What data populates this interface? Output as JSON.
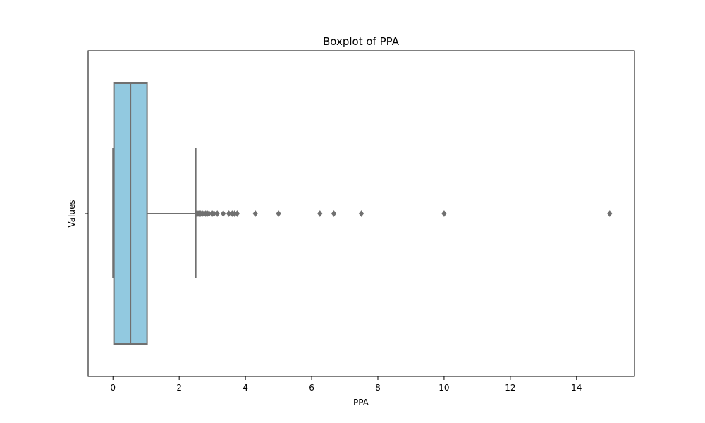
{
  "chart_data": {
    "type": "boxplot",
    "title": "Boxplot of PPA",
    "xlabel": "PPA",
    "ylabel": "Values",
    "xlim": [
      -0.75,
      15.75
    ],
    "xticks": [
      0,
      2,
      4,
      6,
      8,
      10,
      12,
      14
    ],
    "orientation": "horizontal",
    "box": {
      "whisker_low": 0,
      "q1": 0.03,
      "median": 0.53,
      "q3": 1.03,
      "whisker_high": 2.5
    },
    "outliers": [
      2.53,
      2.57,
      2.6,
      2.65,
      2.7,
      2.75,
      2.8,
      2.85,
      2.9,
      3.0,
      3.05,
      3.15,
      3.33,
      3.5,
      3.6,
      3.67,
      3.75,
      4.3,
      5.0,
      6.25,
      6.67,
      7.5,
      10.0,
      15.0
    ],
    "colors": {
      "box_fill": "#92c9e0",
      "line": "#707070"
    }
  }
}
